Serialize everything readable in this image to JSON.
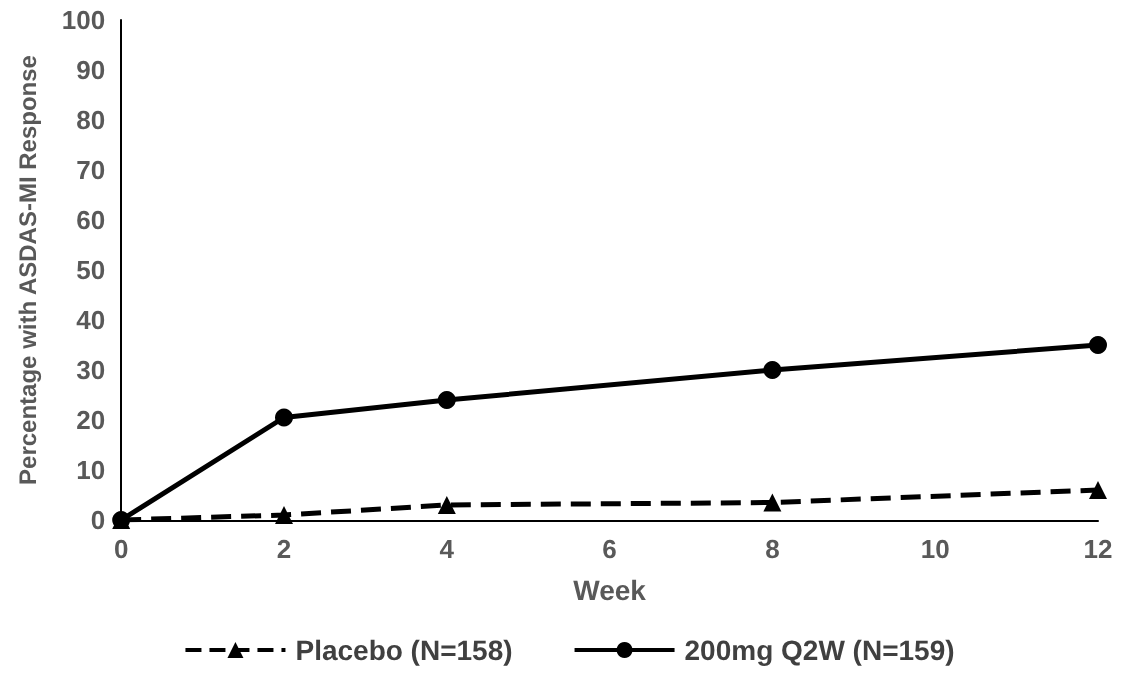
{
  "chart_data": {
    "type": "line",
    "xlabel": "Week",
    "ylabel": "Percentage with ASDAS-MI Response",
    "x": [
      0,
      2,
      4,
      8,
      12
    ],
    "series": [
      {
        "name": "Placebo (N=158)",
        "color": "#000000",
        "marker": "triangle",
        "line_style": "dashed",
        "values": [
          0,
          1,
          3,
          3.5,
          6
        ]
      },
      {
        "name": "200mg Q2W (N=159)",
        "color": "#000000",
        "marker": "circle",
        "line_style": "solid",
        "values": [
          0,
          20.5,
          24,
          30,
          35
        ]
      }
    ],
    "xlim": [
      0,
      12
    ],
    "xticks": [
      0,
      2,
      4,
      6,
      8,
      10,
      12
    ],
    "ylim": [
      0,
      100
    ],
    "yticks": [
      0,
      10,
      20,
      30,
      40,
      50,
      60,
      70,
      80,
      90,
      100
    ],
    "grid": false,
    "legend": "bottom"
  }
}
